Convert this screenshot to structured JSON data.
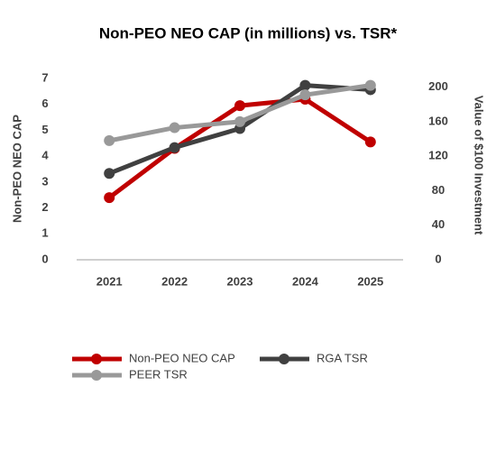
{
  "chart_data": {
    "type": "line",
    "title": "Non-PEO NEO CAP (in millions) vs. TSR*",
    "ylabel": "Non-PEO NEO CAP",
    "y2label": "Value of $100 Investment",
    "categories": [
      "2021",
      "2022",
      "2023",
      "2024",
      "2025"
    ],
    "ylim": [
      0,
      7
    ],
    "yticks": [
      0,
      1,
      2,
      3,
      4,
      5,
      6,
      7
    ],
    "y2lim": [
      0,
      210
    ],
    "y2ticks": [
      0,
      40,
      80,
      120,
      160,
      200
    ],
    "series": [
      {
        "name": "Non-PEO NEO CAP",
        "color": "#c00000",
        "values": [
          2.4,
          4.3,
          5.95,
          6.2,
          4.55
        ]
      },
      {
        "name": "RGA TSR",
        "color": "#404040",
        "axis": "y2",
        "values": [
          100,
          130,
          152,
          202,
          197
        ]
      },
      {
        "name": "PEER TSR",
        "color": "#999999",
        "axis": "y2",
        "values": [
          138,
          153,
          160,
          191,
          202
        ]
      }
    ]
  }
}
